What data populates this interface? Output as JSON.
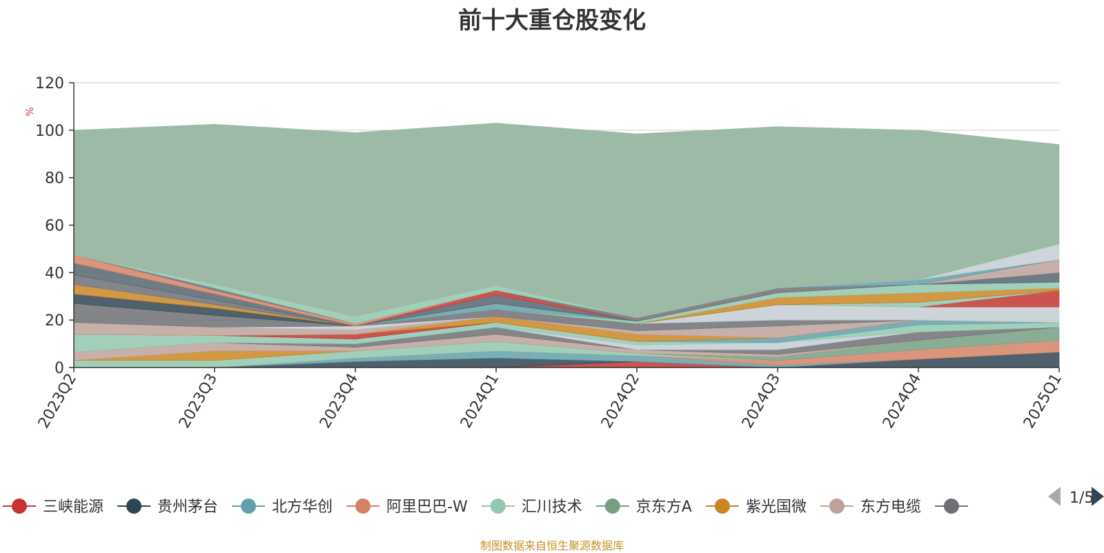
{
  "chart_data": {
    "type": "area",
    "stacked": true,
    "title": "前十大重仓股变化",
    "ylabel": "%",
    "ylim": [
      0,
      120
    ],
    "yticks": [
      0,
      20,
      40,
      60,
      80,
      100,
      120
    ],
    "grid": true,
    "legend_position": "bottom",
    "categories": [
      "2023Q2",
      "2023Q3",
      "2023Q4",
      "2024Q1",
      "2024Q2",
      "2024Q3",
      "2024Q4",
      "2025Q1"
    ],
    "series": [
      {
        "name": "三峡能源",
        "color": "#c23531",
        "values": [
          0,
          0,
          0,
          0,
          2.5,
          0,
          0,
          0
        ]
      },
      {
        "name": "贵州茅台",
        "color": "#2f4554",
        "values": [
          0,
          0,
          2.5,
          4,
          0,
          0,
          3.5,
          6.5
        ]
      },
      {
        "name": "北方华创",
        "color": "#61a0a8",
        "values": [
          0,
          0,
          1.5,
          3,
          2.5,
          1,
          0,
          0
        ]
      },
      {
        "name": "阿里巴巴-W",
        "color": "#d48265",
        "values": [
          0,
          0,
          0,
          0,
          0,
          2,
          4,
          5
        ]
      },
      {
        "name": "汇川技术",
        "color": "#91c7ae",
        "values": [
          3,
          3,
          3,
          4,
          1,
          0,
          0,
          0
        ]
      },
      {
        "name": "京东方A",
        "color": "#749f83",
        "values": [
          0,
          0,
          0,
          0,
          0,
          1.5,
          4,
          5.5
        ]
      },
      {
        "name": "紫光国微",
        "color": "#ca8622",
        "values": [
          0,
          4,
          0,
          0,
          0,
          0,
          0,
          0
        ]
      },
      {
        "name": "东方电缆",
        "color": "#bda29a",
        "values": [
          3.5,
          3.5,
          1.5,
          3,
          1.5,
          1,
          0,
          0
        ]
      },
      {
        "name": "",
        "color": "#6e7074",
        "values": [
          0,
          0,
          1.5,
          3,
          0,
          2,
          3.5,
          0
        ]
      },
      {
        "color": "#546570",
        "values": [
          0,
          0,
          0,
          0,
          0,
          0,
          0,
          0
        ]
      },
      {
        "color": "#c4ccd3",
        "values": [
          0,
          0,
          0,
          0,
          2,
          3,
          0,
          0
        ]
      },
      {
        "color": "#91c7ae",
        "values": [
          7.5,
          3,
          2,
          2,
          1.5,
          0,
          3,
          2
        ]
      },
      {
        "color": "#61a0a8",
        "values": [
          0,
          0,
          0,
          0,
          0,
          2,
          2,
          0
        ]
      },
      {
        "color": "#c23531",
        "values": [
          0,
          0,
          2,
          0,
          0,
          0,
          0,
          0
        ]
      },
      {
        "color": "#ca8622",
        "values": [
          0,
          0,
          0,
          2.5,
          3,
          0,
          0,
          0
        ]
      },
      {
        "color": "#bda29a",
        "values": [
          5,
          3.5,
          2,
          0,
          1.5,
          5,
          0,
          0
        ]
      },
      {
        "color": "#91c7ae",
        "values": [
          0,
          0,
          0,
          0,
          0,
          0,
          0,
          0
        ]
      },
      {
        "color": "#c4ccd3",
        "values": [
          0,
          0,
          1.5,
          0,
          0,
          0,
          0,
          0
        ]
      },
      {
        "color": "#6e7074",
        "values": [
          8,
          5,
          0,
          3,
          3,
          2.5,
          0,
          0
        ]
      },
      {
        "color": "#c4ccd3",
        "values": [
          0,
          0,
          0,
          0,
          0,
          6.5,
          5.5,
          6.5
        ]
      },
      {
        "color": "#c23531",
        "values": [
          0,
          0,
          0,
          0,
          0,
          0,
          0,
          7
        ]
      },
      {
        "color": "#91c7ae",
        "values": [
          0,
          0,
          0,
          0,
          0,
          0,
          2,
          0
        ]
      },
      {
        "color": "#2f4554",
        "values": [
          4,
          3,
          0,
          0,
          0,
          0,
          0,
          0
        ]
      },
      {
        "color": "#ca8622",
        "values": [
          4,
          1.5,
          0,
          0,
          0,
          3,
          4,
          1
        ]
      },
      {
        "color": "#91c7ae",
        "values": [
          0,
          0,
          0,
          0,
          1,
          2,
          3.5,
          2.5
        ]
      },
      {
        "color": "#61a0a8",
        "values": [
          0,
          0,
          0,
          2.5,
          0,
          0,
          0,
          0
        ]
      },
      {
        "color": "#6e7074",
        "values": [
          4,
          2,
          0,
          0,
          0,
          0,
          0,
          0
        ]
      },
      {
        "color": "#546570",
        "values": [
          5,
          2.5,
          0,
          3.5,
          0,
          0,
          0,
          4
        ]
      },
      {
        "color": "#bda29a",
        "values": [
          0,
          0,
          0,
          0,
          0,
          0,
          0,
          5.5
        ]
      },
      {
        "color": "#c23531",
        "values": [
          0,
          0,
          0,
          2,
          0,
          0,
          0,
          0
        ]
      },
      {
        "color": "#d48265",
        "values": [
          3.5,
          1.5,
          1,
          0,
          0,
          0,
          0,
          0
        ]
      },
      {
        "color": "#6e7074",
        "values": [
          0,
          1,
          0,
          0,
          1.5,
          2,
          0,
          0
        ]
      },
      {
        "color": "#61a0a8",
        "values": [
          0,
          0,
          0,
          0,
          0,
          0,
          2,
          0
        ]
      },
      {
        "color": "#91c7ae",
        "values": [
          0,
          1.5,
          3,
          2,
          0,
          0,
          0,
          0
        ]
      },
      {
        "color": "#c4ccd3",
        "values": [
          0,
          0,
          0,
          0,
          0,
          0,
          0,
          6.5
        ]
      },
      {
        "color": "#9dbaa6",
        "values": [
          52.5,
          67.5,
          77.5,
          68.5,
          77.5,
          68,
          63,
          42
        ]
      }
    ]
  },
  "legend": {
    "items": [
      {
        "label": "三峡能源",
        "color": "#c23531"
      },
      {
        "label": "贵州茅台",
        "color": "#2f4554"
      },
      {
        "label": "北方华创",
        "color": "#61a0a8"
      },
      {
        "label": "阿里巴巴-W",
        "color": "#d48265"
      },
      {
        "label": "汇川技术",
        "color": "#91c7ae"
      },
      {
        "label": "京东方A",
        "color": "#749f83"
      },
      {
        "label": "紫光国微",
        "color": "#ca8622"
      },
      {
        "label": "东方电缆",
        "color": "#bda29a"
      },
      {
        "label": "",
        "color": "#6e7074"
      }
    ],
    "page_indicator": "1/5",
    "prev_icon": "triangle-left-icon",
    "next_icon": "triangle-right-icon"
  },
  "source_note": "制图数据来自恒生聚源数据库"
}
